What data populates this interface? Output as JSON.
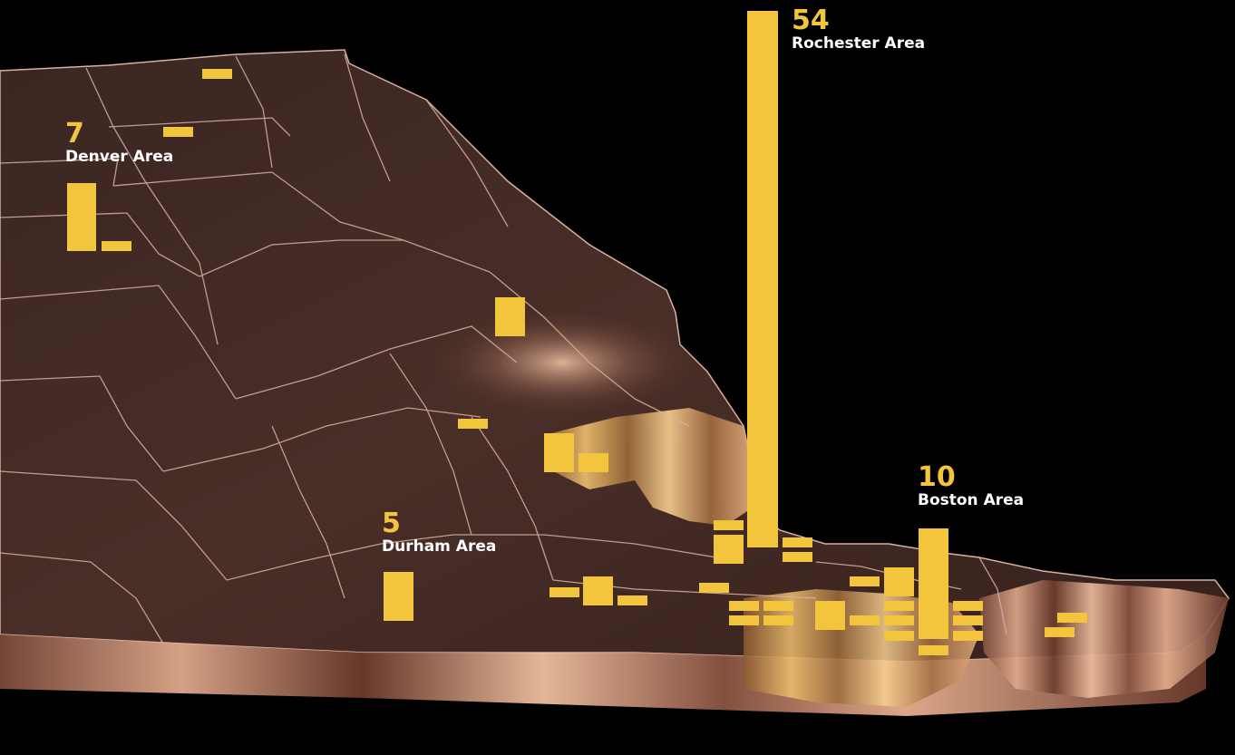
{
  "colors": {
    "background": "#000000",
    "bar": "#f2c53d",
    "label_number": "#f2c53d",
    "label_text": "#ffffff",
    "map_top": "#3a2420",
    "map_side": "#c98a6a",
    "map_border": "#d8b0a0"
  },
  "areas": [
    {
      "count": "54",
      "name": "Rochester Area"
    },
    {
      "count": "10",
      "name": "Boston Area"
    },
    {
      "count": "7",
      "name": "Denver Area"
    },
    {
      "count": "5",
      "name": "Durham Area"
    }
  ]
}
